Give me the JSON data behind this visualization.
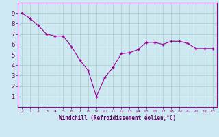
{
  "x": [
    0,
    1,
    2,
    3,
    4,
    5,
    6,
    7,
    8,
    9,
    10,
    11,
    12,
    13,
    14,
    15,
    16,
    17,
    18,
    19,
    20,
    21,
    22,
    23
  ],
  "y": [
    9.0,
    8.5,
    7.8,
    7.0,
    6.8,
    6.8,
    5.8,
    4.5,
    3.5,
    1.0,
    2.8,
    3.8,
    5.1,
    5.2,
    5.5,
    6.2,
    6.2,
    6.0,
    6.3,
    6.3,
    6.1,
    5.6,
    5.6,
    5.6
  ],
  "xlabel": "Windchill (Refroidissement éolien,°C)",
  "ylim": [
    0,
    10
  ],
  "xlim": [
    -0.5,
    23.5
  ],
  "yticks": [
    1,
    2,
    3,
    4,
    5,
    6,
    7,
    8,
    9
  ],
  "xticks": [
    0,
    1,
    2,
    3,
    4,
    5,
    6,
    7,
    8,
    9,
    10,
    11,
    12,
    13,
    14,
    15,
    16,
    17,
    18,
    19,
    20,
    21,
    22,
    23
  ],
  "line_color": "#990099",
  "marker": "+",
  "bg_color": "#cde8f0",
  "grid_color": "#aacccc",
  "label_color": "#660066",
  "tick_color": "#660066",
  "spine_color": "#990099"
}
